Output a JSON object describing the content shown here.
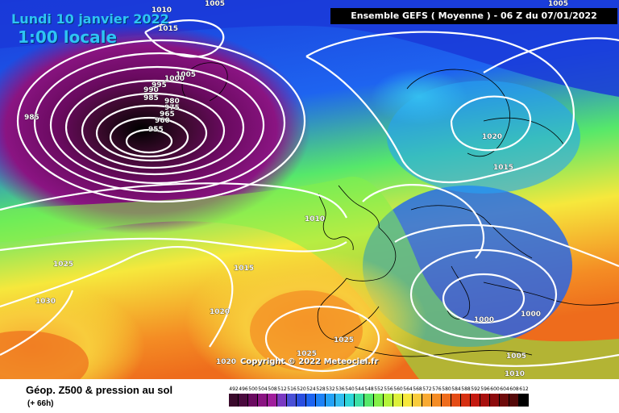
{
  "header": {
    "date": "Lundi 10 janvier 2022",
    "local_time": "1:00 locale",
    "model_run": "Ensemble GEFS  ( Moyenne )  -  06 Z du 07/01/2022"
  },
  "copyright": "Copyright © 2022 Meteociel.fr",
  "footer": {
    "field": "Géop. Z500 & pression au sol",
    "forecast_step": "(+ 66h)"
  },
  "color_scale": {
    "labels": [
      "492",
      "496",
      "500",
      "504",
      "508",
      "512",
      "516",
      "520",
      "524",
      "528",
      "532",
      "536",
      "540",
      "544",
      "548",
      "552",
      "556",
      "560",
      "564",
      "568",
      "572",
      "576",
      "580",
      "584",
      "588",
      "592",
      "596",
      "600",
      "604",
      "608",
      "612"
    ],
    "colors": [
      "#3a0a2c",
      "#4a0a3e",
      "#6a0a60",
      "#8a1482",
      "#a01e9c",
      "#7a3ac2",
      "#4a50d6",
      "#2a4ee0",
      "#1e64f0",
      "#1e82f6",
      "#24a2f6",
      "#34bef0",
      "#2ed6d8",
      "#3ce0a6",
      "#56e86a",
      "#84f048",
      "#b4f43a",
      "#dcf03a",
      "#f6e83c",
      "#f8cc3c",
      "#f8aa32",
      "#f48c24",
      "#ee6c1c",
      "#e44c16",
      "#d63012",
      "#c41a10",
      "#a8100e",
      "#8c0a0c",
      "#6e0a0a",
      "#540808",
      "#000000"
    ]
  },
  "isobars": [
    {
      "label": "1010"
    },
    {
      "label": "1015"
    },
    {
      "label": "1005"
    },
    {
      "label": "1005"
    },
    {
      "label": "1000"
    },
    {
      "label": "995"
    },
    {
      "label": "990"
    },
    {
      "label": "985"
    },
    {
      "label": "980"
    },
    {
      "label": "975"
    },
    {
      "label": "965"
    },
    {
      "label": "960"
    },
    {
      "label": "955"
    },
    {
      "label": "985"
    },
    {
      "label": "1010"
    },
    {
      "label": "1025"
    },
    {
      "label": "1030"
    },
    {
      "label": "1015"
    },
    {
      "label": "1020"
    },
    {
      "label": "1020"
    },
    {
      "label": "1025"
    },
    {
      "label": "1025"
    },
    {
      "label": "1020"
    },
    {
      "label": "1015"
    },
    {
      "label": "1000"
    },
    {
      "label": "1000"
    },
    {
      "label": "1005"
    },
    {
      "label": "1010"
    },
    {
      "label": "1005"
    }
  ]
}
